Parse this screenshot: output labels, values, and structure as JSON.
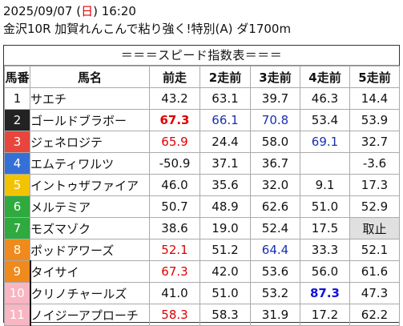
{
  "header": {
    "date_prefix": "2025/09/07 (",
    "weekday": "日",
    "date_suffix": ") 16:20",
    "race_title": "金沢10R 加賀れんこんで粘り強く!特別(A) ダ1700m"
  },
  "table": {
    "subtitle": "＝＝＝スピード指数表＝＝＝",
    "columns": [
      "馬番",
      "馬名",
      "前走",
      "2走前",
      "3走前",
      "4走前",
      "5走前"
    ],
    "colors": {
      "gate-1": "#ffffff",
      "gate-2": "#222222",
      "gate-3": "#e8453c",
      "gate-4": "#3470d6",
      "gate-5": "#f2c400",
      "gate-6": "#2eaa3e",
      "gate-7": "#f08a1c",
      "gate-8": "#f8b5c2",
      "highlight_red": "#e00000",
      "highlight_blue": "#1a2fb0"
    },
    "rows": [
      {
        "num": "1",
        "name": "サエチ",
        "scores": [
          "43.2",
          "63.1",
          "39.7",
          "46.3",
          "14.4"
        ]
      },
      {
        "num": "2",
        "name": "ゴールドブラボー",
        "scores": [
          "67.3",
          "66.1",
          "70.8",
          "53.4",
          "53.9"
        ]
      },
      {
        "num": "3",
        "name": "ジェネロジテ",
        "scores": [
          "65.9",
          "24.4",
          "58.0",
          "69.1",
          "32.7"
        ]
      },
      {
        "num": "4",
        "name": "エムティワルツ",
        "scores": [
          "-50.9",
          "37.1",
          "36.7",
          "",
          "-3.6"
        ]
      },
      {
        "num": "5",
        "name": "イントゥザファイア",
        "scores": [
          "46.0",
          "35.6",
          "32.0",
          "9.1",
          "17.3"
        ]
      },
      {
        "num": "6",
        "name": "メルテミア",
        "scores": [
          "50.7",
          "48.9",
          "62.6",
          "51.0",
          "52.9"
        ]
      },
      {
        "num": "7",
        "name": "モズマゾク",
        "scores": [
          "38.6",
          "19.0",
          "52.4",
          "17.5",
          "取止"
        ]
      },
      {
        "num": "8",
        "name": "ポッドアワーズ",
        "scores": [
          "52.1",
          "51.2",
          "64.4",
          "33.3",
          "52.1"
        ]
      },
      {
        "num": "9",
        "name": "タイサイ",
        "scores": [
          "67.3",
          "42.0",
          "53.6",
          "56.0",
          "61.6"
        ]
      },
      {
        "num": "10",
        "name": "クリノチャールズ",
        "scores": [
          "41.0",
          "51.0",
          "53.2",
          "87.3",
          "47.3"
        ]
      },
      {
        "num": "11",
        "name": "ノイジーアプローチ",
        "scores": [
          "58.3",
          "58.3",
          "31.9",
          "17.2",
          "62.2"
        ]
      }
    ]
  }
}
